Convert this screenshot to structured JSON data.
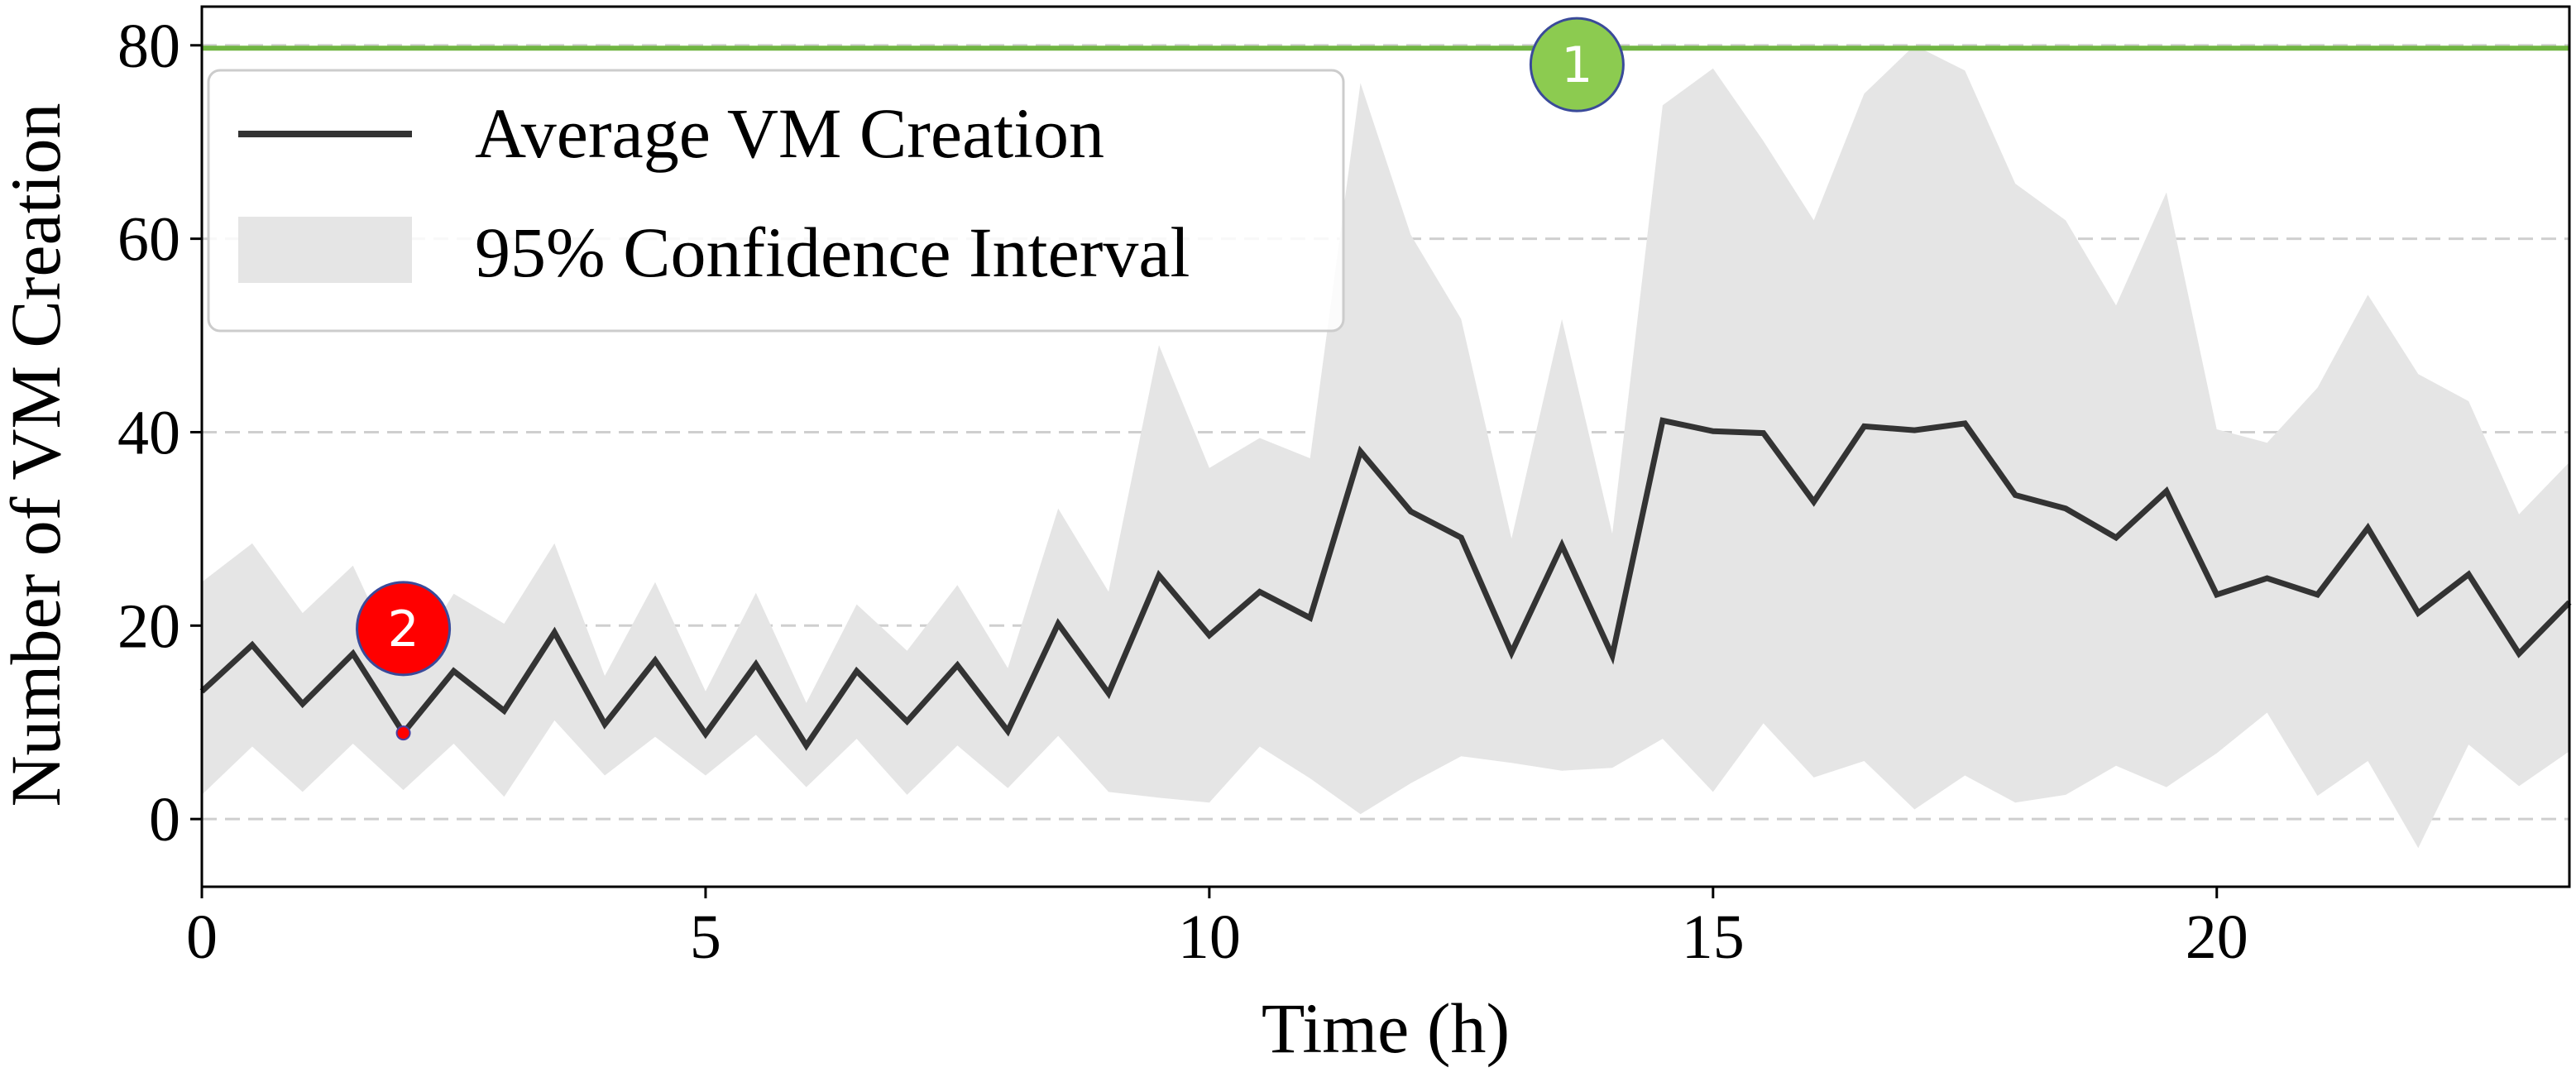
{
  "chart_data": {
    "type": "line",
    "xlabel": "Time (h)",
    "ylabel": "Number of VM Creation",
    "xlim": [
      0,
      23.5
    ],
    "ylim": [
      -7,
      84
    ],
    "xticks": [
      0,
      5,
      10,
      15,
      20
    ],
    "yticks": [
      0,
      20,
      40,
      60,
      80
    ],
    "grid": "horizontal-dashed",
    "legend_position": "top-left",
    "x": [
      0,
      0.5,
      1,
      1.5,
      2,
      2.5,
      3,
      3.5,
      4,
      4.5,
      5,
      5.5,
      6,
      6.5,
      7,
      7.5,
      8,
      8.5,
      9,
      9.5,
      10,
      10.5,
      11,
      11.5,
      12,
      12.5,
      13,
      13.5,
      14,
      14.5,
      15,
      15.5,
      16,
      16.5,
      17,
      17.5,
      18,
      18.5,
      19,
      19.5,
      20,
      20.5,
      21,
      21.5,
      22,
      22.5,
      23,
      23.5
    ],
    "series": [
      {
        "name": "Average VM Creation",
        "color": "#333333",
        "values": [
          13.2,
          18.0,
          11.9,
          17.1,
          8.9,
          15.3,
          11.2,
          19.3,
          9.8,
          16.4,
          8.8,
          16.0,
          7.6,
          15.3,
          10.1,
          15.9,
          9.1,
          20.2,
          13.0,
          25.2,
          19.0,
          23.5,
          20.8,
          38.0,
          31.8,
          29.1,
          17.2,
          28.3,
          16.9,
          41.2,
          40.1,
          39.9,
          32.8,
          40.6,
          40.2,
          40.9,
          33.5,
          32.1,
          29.1,
          33.9,
          23.2,
          24.9,
          23.2,
          30.1,
          21.3,
          25.3,
          17.1,
          22.4
        ]
      },
      {
        "name": "95% Confidence Interval",
        "color": "#e5e5e5",
        "lower": [
          2.5,
          7.5,
          2.8,
          7.8,
          3.0,
          7.8,
          2.3,
          10.2,
          4.5,
          8.5,
          4.5,
          8.7,
          3.3,
          8.3,
          2.5,
          7.6,
          3.2,
          8.6,
          2.8,
          2.2,
          1.7,
          7.5,
          4.2,
          0.5,
          3.7,
          6.5,
          5.8,
          5.0,
          5.3,
          8.3,
          2.8,
          9.9,
          4.3,
          6.0,
          1.0,
          4.5,
          1.7,
          2.5,
          5.5,
          3.3,
          6.8,
          11.0,
          2.4,
          6.0,
          -3.0,
          7.7,
          3.4,
          7.0
        ],
        "upper": [
          24.5,
          28.5,
          21.3,
          26.2,
          15.0,
          23.3,
          20.2,
          28.5,
          14.8,
          24.5,
          13.2,
          23.4,
          12.0,
          22.2,
          17.4,
          24.2,
          15.6,
          32.1,
          23.5,
          49.0,
          36.3,
          39.4,
          37.3,
          76.1,
          60.4,
          51.7,
          29.0,
          51.7,
          29.5,
          73.8,
          77.6,
          70.1,
          61.9,
          75.0,
          80.0,
          77.4,
          65.7,
          61.9,
          53.1,
          64.8,
          40.3,
          38.9,
          44.6,
          54.2,
          46.0,
          43.2,
          31.5,
          36.9
        ]
      }
    ],
    "reference_line": {
      "y": 79.7,
      "color": "#70b542"
    },
    "markers": [
      {
        "label": "1",
        "x": 13.65,
        "y": 78.0,
        "color": "#8ccb50"
      },
      {
        "label": "2",
        "x": 2.0,
        "y": 19.7,
        "color": "#ff0000",
        "point_y": 8.9
      }
    ]
  }
}
